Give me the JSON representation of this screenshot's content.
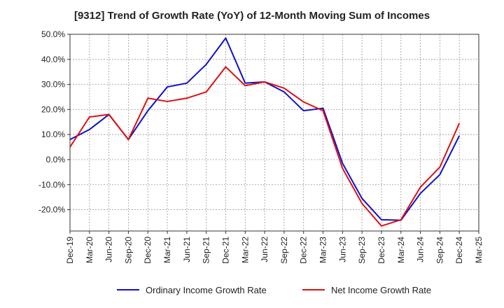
{
  "chart_data": {
    "type": "line",
    "title": "[9312]  Trend of Growth Rate (YoY) of 12-Month Moving Sum of Incomes",
    "xlabel": "",
    "ylabel": "",
    "ylim": [
      -28.5,
      50
    ],
    "y_ticks": [
      50,
      40,
      30,
      20,
      10,
      0,
      -10,
      -20
    ],
    "y_tick_labels": [
      "50.0%",
      "40.0%",
      "30.0%",
      "20.0%",
      "10.0%",
      "0.0%",
      "-10.0%",
      "-20.0%"
    ],
    "x_tick_labels": [
      "Dec-19",
      "Mar-20",
      "Jun-20",
      "Sep-20",
      "Dec-20",
      "Mar-21",
      "Jun-21",
      "Sep-21",
      "Dec-21",
      "Mar-22",
      "Jun-22",
      "Sep-22",
      "Dec-22",
      "Mar-23",
      "Jun-23",
      "Sep-23",
      "Dec-23",
      "Mar-24",
      "Jun-24",
      "Sep-24",
      "Dec-24",
      "Mar-25"
    ],
    "grid": true,
    "legend_position": "bottom",
    "series": [
      {
        "name": "Ordinary Income Growth Rate",
        "color": "#1010cc",
        "values": [
          8.0,
          12.0,
          18.0,
          8.0,
          19.5,
          29.0,
          30.5,
          38.0,
          48.5,
          30.5,
          31.0,
          27.0,
          19.5,
          20.5,
          -1.5,
          -15.5,
          -24.0,
          -24.2,
          -13.5,
          -6.0,
          9.5
        ]
      },
      {
        "name": "Net Income Growth Rate",
        "color": "#dd1111",
        "values": [
          5.0,
          17.0,
          18.0,
          8.0,
          24.5,
          23.2,
          24.5,
          27.0,
          37.0,
          29.5,
          31.0,
          28.5,
          23.0,
          19.5,
          -3.5,
          -17.5,
          -26.5,
          -24.0,
          -11.0,
          -3.0,
          14.5
        ]
      }
    ]
  }
}
